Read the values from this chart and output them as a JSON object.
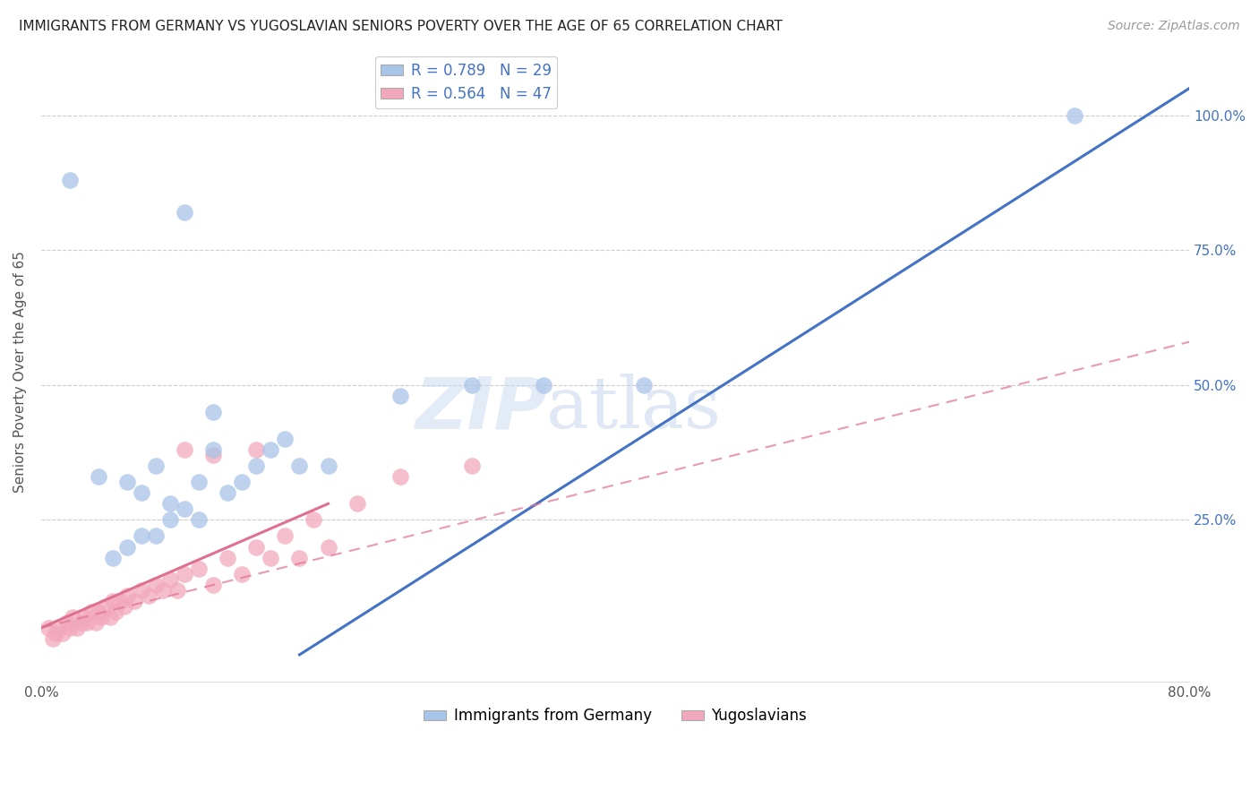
{
  "title": "IMMIGRANTS FROM GERMANY VS YUGOSLAVIAN SENIORS POVERTY OVER THE AGE OF 65 CORRELATION CHART",
  "source": "Source: ZipAtlas.com",
  "ylabel": "Seniors Poverty Over the Age of 65",
  "xlim": [
    0.0,
    0.8
  ],
  "ylim": [
    -0.05,
    1.1
  ],
  "xticks": [
    0.0,
    0.2,
    0.4,
    0.6,
    0.8
  ],
  "xtick_labels": [
    "0.0%",
    "",
    "",
    "",
    "80.0%"
  ],
  "ytick_positions": [
    0.0,
    0.25,
    0.5,
    0.75,
    1.0
  ],
  "ytick_labels_right": [
    "",
    "25.0%",
    "50.0%",
    "75.0%",
    "100.0%"
  ],
  "legend_entry1": "R = 0.789   N = 29",
  "legend_entry2": "R = 0.564   N = 47",
  "legend_label1": "Immigrants from Germany",
  "legend_label2": "Yugoslavians",
  "blue_color": "#a8c4e8",
  "pink_color": "#f2a8bc",
  "blue_line_color": "#4472c4",
  "pink_line_color": "#e07090",
  "pink_line_dash": [
    6,
    4
  ],
  "watermark_zip": "ZIP",
  "watermark_atlas": "atlas",
  "grid_color": "#cccccc",
  "blue_scatter_x": [
    0.02,
    0.04,
    0.06,
    0.07,
    0.08,
    0.09,
    0.1,
    0.11,
    0.12,
    0.13,
    0.14,
    0.15,
    0.16,
    0.17,
    0.18,
    0.09,
    0.07,
    0.12,
    0.2,
    0.25,
    0.3,
    0.72,
    0.1,
    0.35,
    0.42,
    0.05,
    0.06,
    0.08,
    0.11
  ],
  "blue_scatter_y": [
    0.88,
    0.33,
    0.32,
    0.3,
    0.35,
    0.28,
    0.27,
    0.32,
    0.38,
    0.3,
    0.32,
    0.35,
    0.38,
    0.4,
    0.35,
    0.25,
    0.22,
    0.45,
    0.35,
    0.48,
    0.5,
    1.0,
    0.82,
    0.5,
    0.5,
    0.18,
    0.2,
    0.22,
    0.25
  ],
  "pink_scatter_x": [
    0.005,
    0.008,
    0.01,
    0.012,
    0.015,
    0.018,
    0.02,
    0.022,
    0.025,
    0.028,
    0.03,
    0.032,
    0.035,
    0.038,
    0.04,
    0.042,
    0.045,
    0.048,
    0.05,
    0.052,
    0.055,
    0.058,
    0.06,
    0.065,
    0.07,
    0.075,
    0.08,
    0.085,
    0.09,
    0.095,
    0.1,
    0.11,
    0.12,
    0.13,
    0.14,
    0.15,
    0.16,
    0.17,
    0.18,
    0.19,
    0.2,
    0.22,
    0.25,
    0.3,
    0.1,
    0.12,
    0.15
  ],
  "pink_scatter_y": [
    0.05,
    0.03,
    0.04,
    0.05,
    0.04,
    0.06,
    0.05,
    0.07,
    0.05,
    0.06,
    0.07,
    0.06,
    0.08,
    0.06,
    0.08,
    0.07,
    0.09,
    0.07,
    0.1,
    0.08,
    0.1,
    0.09,
    0.11,
    0.1,
    0.12,
    0.11,
    0.13,
    0.12,
    0.14,
    0.12,
    0.15,
    0.16,
    0.13,
    0.18,
    0.15,
    0.2,
    0.18,
    0.22,
    0.18,
    0.25,
    0.2,
    0.28,
    0.33,
    0.35,
    0.38,
    0.37,
    0.38
  ],
  "blue_line_x": [
    0.18,
    0.8
  ],
  "blue_line_y": [
    0.0,
    1.05
  ],
  "pink_solid_line_x": [
    0.0,
    0.2
  ],
  "pink_solid_line_y": [
    0.05,
    0.28
  ],
  "pink_dash_line_x": [
    0.0,
    0.8
  ],
  "pink_dash_line_y": [
    0.05,
    0.58
  ]
}
